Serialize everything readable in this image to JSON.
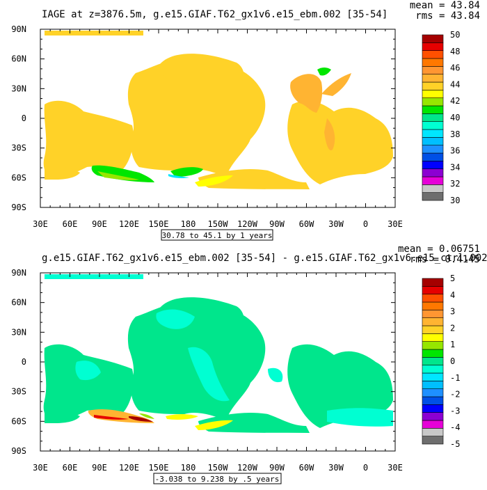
{
  "chart_data": [
    {
      "type": "heatmap",
      "title": "IAGE at z=3876.5m, g.e15.GIAF.T62_gx1v6.e15_ebm.002 [35-54]",
      "stats": {
        "mean": "mean = 43.84",
        "rms": "rms = 43.84"
      },
      "x_ticks": [
        "30E",
        "60E",
        "90E",
        "120E",
        "150E",
        "180",
        "150W",
        "120W",
        "90W",
        "60W",
        "30W",
        "0",
        "30E"
      ],
      "y_ticks": [
        "90N",
        "60N",
        "30N",
        "0",
        "30S",
        "60S",
        "90S"
      ],
      "xlim": [
        30,
        390
      ],
      "ylim": [
        -90,
        90
      ],
      "contour_info": "30.78 to 45.1 by 1 years",
      "colorbar": {
        "labels": [
          "50",
          "48",
          "46",
          "44",
          "42",
          "40",
          "38",
          "36",
          "34",
          "32",
          "30"
        ],
        "levels": [
          30,
          31,
          32,
          33,
          34,
          35,
          36,
          37,
          38,
          39,
          40,
          41,
          42,
          43,
          44,
          45,
          46,
          47,
          48,
          49,
          50
        ],
        "colors": [
          "#6e6e6e",
          "#c8c8c8",
          "#e600d8",
          "#8c00d2",
          "#0000ff",
          "#0050e6",
          "#1e90ff",
          "#00bfff",
          "#00e6ff",
          "#00ffd2",
          "#00e68c",
          "#00e600",
          "#96e600",
          "#ffff00",
          "#ffd228",
          "#ffb432",
          "#ff9632",
          "#ff7800",
          "#ff5000",
          "#e60000",
          "#a50000"
        ]
      },
      "dominant_value": 44
    },
    {
      "type": "heatmap",
      "title": "g.e15.GIAF.T62_gx1v6.e15_ebm.002 [35-54] - g.e15.GIAF.T62_gx1v6.e15_ctrl.002",
      "stats": {
        "mean": "mean = 0.06751",
        "rms": "rms = 0.4145"
      },
      "x_ticks": [
        "30E",
        "60E",
        "90E",
        "120E",
        "150E",
        "180",
        "150W",
        "120W",
        "90W",
        "60W",
        "30W",
        "0",
        "30E"
      ],
      "y_ticks": [
        "90N",
        "60N",
        "30N",
        "0",
        "30S",
        "60S",
        "90S"
      ],
      "xlim": [
        30,
        390
      ],
      "ylim": [
        -90,
        90
      ],
      "contour_info": "-3.038 to 9.238 by .5 years",
      "colorbar": {
        "labels": [
          "5",
          "4",
          "3",
          "2",
          "1",
          "0",
          "-1",
          "-2",
          "-3",
          "-4",
          "-5"
        ],
        "levels": [
          -5,
          -4.5,
          -4,
          -3.5,
          -3,
          -2.5,
          -2,
          -1.5,
          -1,
          -0.5,
          0,
          0.5,
          1,
          1.5,
          2,
          2.5,
          3,
          3.5,
          4,
          4.5,
          5
        ],
        "colors": [
          "#6e6e6e",
          "#c8c8c8",
          "#e600d8",
          "#8c00d2",
          "#0000ff",
          "#0050e6",
          "#1e90ff",
          "#00bfff",
          "#00e6ff",
          "#00ffd2",
          "#00e68c",
          "#00e600",
          "#96e600",
          "#ffff00",
          "#ffd228",
          "#ffb432",
          "#ff9632",
          "#ff7800",
          "#ff5000",
          "#e60000",
          "#a50000"
        ]
      },
      "dominant_value": 0.25
    }
  ]
}
